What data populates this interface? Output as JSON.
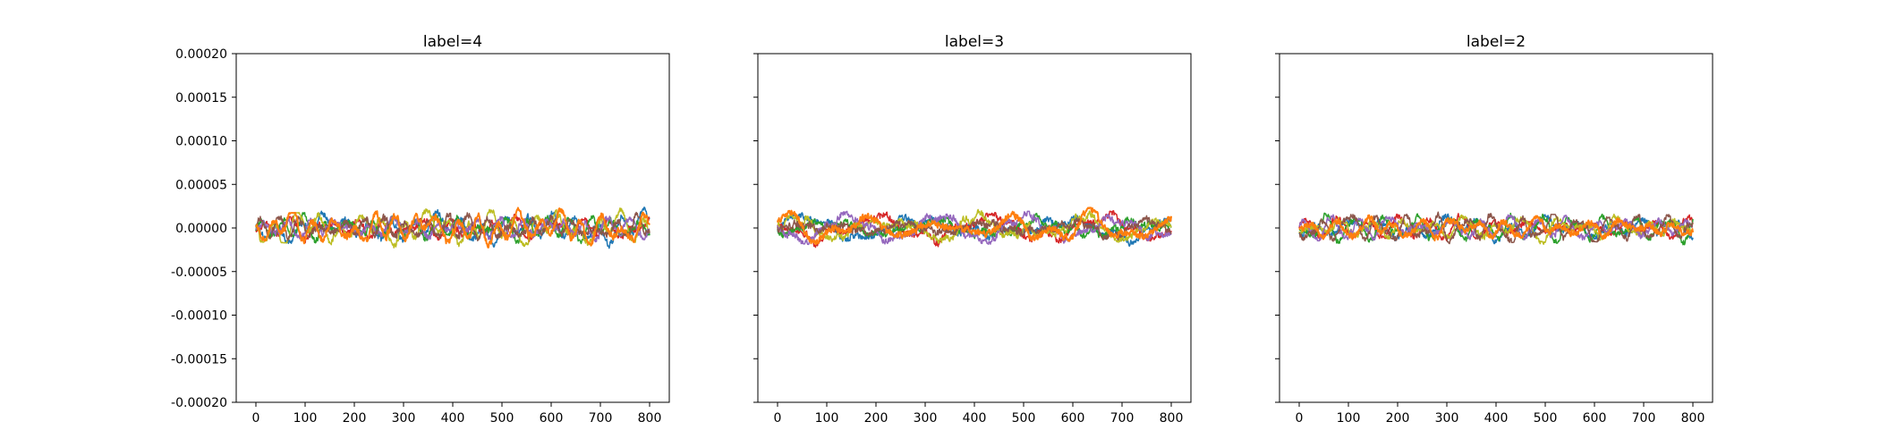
{
  "chart_data": [
    {
      "type": "line",
      "title": "label=4",
      "xlabel": "",
      "ylabel": "",
      "xlim": [
        -40,
        840
      ],
      "ylim": [
        -0.0002,
        0.0002
      ],
      "xticks": [
        0,
        100,
        200,
        300,
        400,
        500,
        600,
        700,
        800
      ],
      "yticks": [
        -0.0002,
        -0.00015,
        -0.0001,
        -5e-05,
        0,
        5e-05,
        0.0001,
        0.00015,
        0.0002
      ],
      "ytick_labels": [
        "-0.00020",
        "-0.00015",
        "-0.00010",
        "-0.00005",
        "0.00000",
        "0.00005",
        "0.00010",
        "0.00015",
        "0.00020"
      ],
      "show_ytick_labels": true,
      "grid": false,
      "x_extent": [
        0,
        800
      ],
      "band": {
        "center": 0.0,
        "amplitude": 1.2e-05,
        "range": [
          -3e-05,
          4e-05
        ]
      },
      "series": [
        {
          "color": "#1f77b4",
          "values": [
            2e-05,
            2.5e-05,
            3.5e-05,
            4e-05,
            3e-05,
            3.5e-05,
            2.5e-05,
            4e-05
          ]
        },
        {
          "color": "#d62728",
          "values": [
            1.8e-05,
            2e-05,
            2.8e-05,
            3e-05,
            2.2e-05,
            2.8e-05,
            2e-05,
            3.5e-05
          ]
        },
        {
          "color": "#2ca02c",
          "values": [
            1.5e-05,
            1.8e-05,
            2.5e-05,
            2.8e-05,
            2e-05,
            2.5e-05,
            1.8e-05,
            3e-05
          ]
        },
        {
          "color": "#bcbd22",
          "values": [
            1.6e-05,
            1.8e-05,
            2.5e-05,
            2.7e-05,
            2.2e-05,
            2.6e-05,
            2e-05,
            2.8e-05
          ]
        },
        {
          "color": "#9467bd",
          "values": [
            1.4e-05,
            1.6e-05,
            2.2e-05,
            2.5e-05,
            1.8e-05,
            2.2e-05,
            1.7e-05,
            2.7e-05
          ]
        },
        {
          "color": "#8c564b",
          "values": [
            1.4e-05,
            1.6e-05,
            2.2e-05,
            2.4e-05,
            1.8e-05,
            2.2e-05,
            1.6e-05,
            2.6e-05
          ]
        },
        {
          "color": "#ff7f0e",
          "values": [
            1.6e-05,
            1.8e-05,
            2.6e-05,
            2.8e-05,
            2.2e-05,
            2.5e-05,
            2e-05,
            3e-05
          ]
        }
      ]
    },
    {
      "type": "line",
      "title": "label=3",
      "xlabel": "",
      "ylabel": "",
      "xlim": [
        -40,
        840
      ],
      "ylim": [
        -0.0002,
        0.0002
      ],
      "xticks": [
        0,
        100,
        200,
        300,
        400,
        500,
        600,
        700,
        800
      ],
      "yticks": [
        -0.0002,
        -0.00015,
        -0.0001,
        -5e-05,
        0,
        5e-05,
        0.0001,
        0.00015,
        0.0002
      ],
      "ytick_labels": [],
      "show_ytick_labels": false,
      "grid": false,
      "x_extent": [
        0,
        800
      ],
      "band": {
        "center": 0.0,
        "amplitude": 1.2e-05,
        "range": [
          -3.5e-05,
          4e-05
        ]
      },
      "series": [
        {
          "color": "#1f77b4",
          "values": [
            2e-05,
            3.8e-05,
            3e-05,
            2.8e-05,
            3e-05,
            2.8e-05,
            3e-05,
            3.2e-05
          ]
        },
        {
          "color": "#d62728",
          "values": [
            1.8e-05,
            3e-05,
            2.5e-05,
            2.2e-05,
            2.5e-05,
            2.4e-05,
            2.6e-05,
            2.8e-05
          ]
        },
        {
          "color": "#2ca02c",
          "values": [
            1.6e-05,
            2.6e-05,
            2.2e-05,
            2e-05,
            2.2e-05,
            2e-05,
            2.4e-05,
            2.5e-05
          ]
        },
        {
          "color": "#bcbd22",
          "values": [
            1.7e-05,
            2.6e-05,
            2.2e-05,
            2e-05,
            2.2e-05,
            2.1e-05,
            2.5e-05,
            2.6e-05
          ]
        },
        {
          "color": "#9467bd",
          "values": [
            1.5e-05,
            2.2e-05,
            2e-05,
            1.8e-05,
            2e-05,
            1.8e-05,
            2.2e-05,
            2.2e-05
          ]
        },
        {
          "color": "#8c564b",
          "values": [
            1.5e-05,
            2.2e-05,
            2e-05,
            1.8e-05,
            2e-05,
            1.8e-05,
            2.2e-05,
            2.2e-05
          ]
        },
        {
          "color": "#ff7f0e",
          "values": [
            1.8e-05,
            2.6e-05,
            2.3e-05,
            2e-05,
            2.2e-05,
            2.1e-05,
            2.5e-05,
            2.6e-05
          ]
        }
      ]
    },
    {
      "type": "line",
      "title": "label=2",
      "xlabel": "",
      "ylabel": "",
      "xlim": [
        -40,
        840
      ],
      "ylim": [
        -0.0002,
        0.0002
      ],
      "xticks": [
        0,
        100,
        200,
        300,
        400,
        500,
        600,
        700,
        800
      ],
      "yticks": [
        -0.0002,
        -0.00015,
        -0.0001,
        -5e-05,
        0,
        5e-05,
        0.0001,
        0.00015,
        0.0002
      ],
      "ytick_labels": [],
      "show_ytick_labels": false,
      "grid": false,
      "x_extent": [
        0,
        800
      ],
      "band": {
        "center": 0.0,
        "amplitude": 1.1e-05,
        "range": [
          -3.3e-05,
          3.2e-05
        ]
      },
      "series": [
        {
          "color": "#1f77b4",
          "values": [
            2e-05,
            2.5e-05,
            2.6e-05,
            2.8e-05,
            2.4e-05,
            2.2e-05,
            2.6e-05,
            2.5e-05
          ]
        },
        {
          "color": "#d62728",
          "values": [
            1.8e-05,
            2e-05,
            2.2e-05,
            2.4e-05,
            2e-05,
            1.9e-05,
            2.2e-05,
            2.1e-05
          ]
        },
        {
          "color": "#2ca02c",
          "values": [
            1.6e-05,
            1.8e-05,
            2e-05,
            2.1e-05,
            1.8e-05,
            1.7e-05,
            2e-05,
            1.9e-05
          ]
        },
        {
          "color": "#bcbd22",
          "values": [
            1.6e-05,
            1.9e-05,
            2.1e-05,
            2.2e-05,
            1.9e-05,
            1.8e-05,
            2.1e-05,
            2e-05
          ]
        },
        {
          "color": "#9467bd",
          "values": [
            1.4e-05,
            1.6e-05,
            1.8e-05,
            1.9e-05,
            1.6e-05,
            1.5e-05,
            1.8e-05,
            1.7e-05
          ]
        },
        {
          "color": "#8c564b",
          "values": [
            1.4e-05,
            1.6e-05,
            1.8e-05,
            1.9e-05,
            1.6e-05,
            1.5e-05,
            1.8e-05,
            1.7e-05
          ]
        },
        {
          "color": "#ff7f0e",
          "values": [
            1.7e-05,
            2e-05,
            2.2e-05,
            2.3e-05,
            2e-05,
            1.9e-05,
            2.2e-05,
            2.1e-05
          ]
        }
      ]
    }
  ]
}
